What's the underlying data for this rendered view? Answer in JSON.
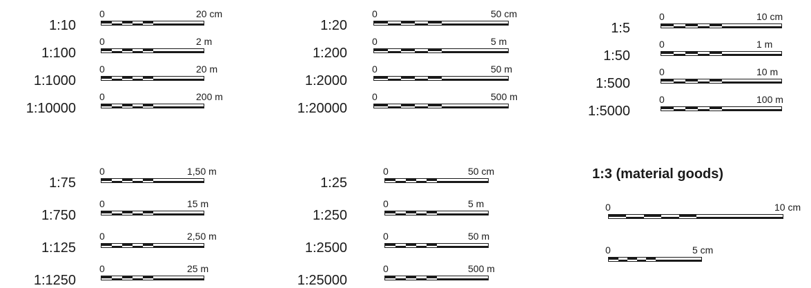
{
  "scale_groups": [
    {
      "rows": [
        {
          "ratio": "1:10",
          "zero": "0",
          "end": "20 cm"
        },
        {
          "ratio": "1:100",
          "zero": "0",
          "end": "2 m"
        },
        {
          "ratio": "1:1000",
          "zero": "0",
          "end": "20 m"
        },
        {
          "ratio": "1:10000",
          "zero": "0",
          "end": "200 m"
        }
      ]
    },
    {
      "rows": [
        {
          "ratio": "1:20",
          "zero": "0",
          "end": "50 cm"
        },
        {
          "ratio": "1:200",
          "zero": "0",
          "end": "5 m"
        },
        {
          "ratio": "1:2000",
          "zero": "0",
          "end": "50 m"
        },
        {
          "ratio": "1:20000",
          "zero": "0",
          "end": "500 m"
        }
      ]
    },
    {
      "rows": [
        {
          "ratio": "1:5",
          "zero": "0",
          "end": "10 cm"
        },
        {
          "ratio": "1:50",
          "zero": "0",
          "end": "1 m"
        },
        {
          "ratio": "1:500",
          "zero": "0",
          "end": "10 m"
        },
        {
          "ratio": "1:5000",
          "zero": "0",
          "end": "100 m"
        }
      ]
    },
    {
      "rows": [
        {
          "ratio": "1:75",
          "zero": "0",
          "end": "1,50 m"
        },
        {
          "ratio": "1:750",
          "zero": "0",
          "end": "15 m"
        },
        {
          "ratio": "1:125",
          "zero": "0",
          "end": "2,50 m"
        },
        {
          "ratio": "1:1250",
          "zero": "0",
          "end": "25 m"
        }
      ]
    },
    {
      "rows": [
        {
          "ratio": "1:25",
          "zero": "0",
          "end": "50 cm"
        },
        {
          "ratio": "1:250",
          "zero": "0",
          "end": "5 m"
        },
        {
          "ratio": "1:2500",
          "zero": "0",
          "end": "50 m"
        },
        {
          "ratio": "1:25000",
          "zero": "0",
          "end": "500 m"
        }
      ]
    }
  ],
  "material": {
    "heading": "1:3 (material goods)",
    "bars": [
      {
        "zero": "0",
        "end": "10 cm"
      },
      {
        "zero": "0",
        "end": "5 cm"
      }
    ]
  },
  "colors": {
    "ink": "#1a1a1a",
    "background": "#ffffff"
  }
}
